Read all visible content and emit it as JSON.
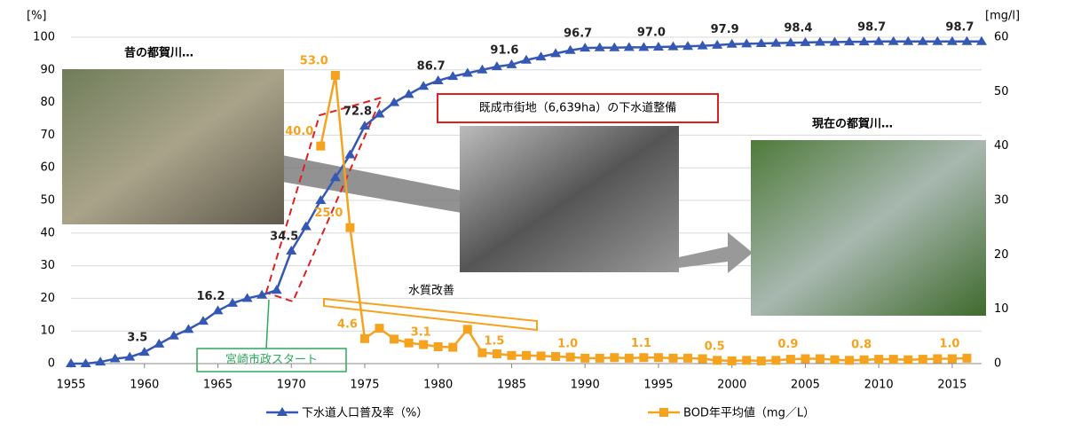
{
  "chart_data": {
    "type": "line",
    "y_unit": "[%]",
    "y2_unit": "[mg/l]",
    "x": [
      1955,
      1956,
      1957,
      1958,
      1959,
      1960,
      1961,
      1962,
      1963,
      1964,
      1965,
      1966,
      1967,
      1968,
      1969,
      1970,
      1971,
      1972,
      1973,
      1974,
      1975,
      1976,
      1977,
      1978,
      1979,
      1980,
      1981,
      1982,
      1983,
      1984,
      1985,
      1986,
      1987,
      1988,
      1989,
      1990,
      1991,
      1992,
      1993,
      1994,
      1995,
      1996,
      1997,
      1998,
      1999,
      2000,
      2001,
      2002,
      2003,
      2004,
      2005,
      2006,
      2007,
      2008,
      2009,
      2010,
      2011,
      2012,
      2013,
      2014,
      2015,
      2016,
      2017
    ],
    "xlim": [
      1955,
      2017
    ],
    "xticks": [
      1955,
      1960,
      1965,
      1970,
      1975,
      1980,
      1985,
      1990,
      1995,
      2000,
      2005,
      2010,
      2015
    ],
    "ylim": [
      0,
      100
    ],
    "yticks": [
      0,
      10,
      20,
      30,
      40,
      50,
      60,
      70,
      80,
      90,
      100
    ],
    "y2lim": [
      0,
      60
    ],
    "y2ticks": [
      0,
      10,
      20,
      30,
      40,
      50,
      60
    ],
    "grid": true,
    "series": [
      {
        "name": "下水道人口普及率（%）",
        "color": "#3558b4",
        "marker": "triangle",
        "values": [
          0,
          0,
          0.5,
          1.5,
          2,
          3.5,
          6,
          8.5,
          10.5,
          13,
          16.2,
          18.5,
          20,
          21,
          22.5,
          34.5,
          42,
          50,
          57,
          64,
          72.8,
          76.5,
          80,
          82.5,
          85,
          86.7,
          88,
          89,
          90,
          91,
          91.6,
          93,
          94,
          95,
          96,
          96.7,
          96.8,
          96.8,
          96.9,
          96.9,
          97.0,
          97.1,
          97.2,
          97.4,
          97.6,
          97.9,
          98,
          98.1,
          98.2,
          98.3,
          98.4,
          98.5,
          98.5,
          98.6,
          98.6,
          98.7,
          98.7,
          98.7,
          98.7,
          98.7,
          98.7,
          98.7,
          98.7
        ],
        "value_labels": [
          null,
          null,
          null,
          null,
          null,
          "3.5",
          null,
          null,
          null,
          null,
          "16.2",
          null,
          null,
          null,
          null,
          "34.5",
          null,
          null,
          null,
          null,
          "72.8",
          null,
          null,
          null,
          null,
          "86.7",
          null,
          null,
          null,
          null,
          "91.6",
          null,
          null,
          null,
          null,
          "96.7",
          null,
          null,
          null,
          null,
          "97.0",
          null,
          null,
          null,
          null,
          "97.9",
          null,
          null,
          null,
          null,
          "98.4",
          null,
          null,
          null,
          null,
          "98.7",
          null,
          null,
          null,
          null,
          null,
          "98.7",
          null
        ]
      },
      {
        "name": "BOD年平均値（mg／L）",
        "color": "#f5a31f",
        "marker": "square",
        "axis": "y2",
        "values": [
          null,
          null,
          null,
          null,
          null,
          null,
          null,
          null,
          null,
          null,
          null,
          null,
          null,
          null,
          null,
          null,
          null,
          40.0,
          53.0,
          25.0,
          4.6,
          6.5,
          4.5,
          3.8,
          3.5,
          3.1,
          3.0,
          6.3,
          2.0,
          1.8,
          1.5,
          1.5,
          1.4,
          1.3,
          1.2,
          1.0,
          1.0,
          1.1,
          1.0,
          1.1,
          1.1,
          1.0,
          1.0,
          0.9,
          0.6,
          0.5,
          0.6,
          0.5,
          0.6,
          0.8,
          0.9,
          0.9,
          0.7,
          0.6,
          0.7,
          0.8,
          0.8,
          0.7,
          0.8,
          0.9,
          0.9,
          1.0,
          null
        ],
        "value_labels": [
          null,
          null,
          null,
          null,
          null,
          null,
          null,
          null,
          null,
          null,
          null,
          null,
          null,
          null,
          null,
          null,
          null,
          "40.0",
          "53.0",
          "25.0",
          "4.6",
          null,
          null,
          null,
          null,
          "3.1",
          null,
          null,
          null,
          null,
          "1.5",
          null,
          null,
          null,
          null,
          "1.0",
          null,
          null,
          null,
          null,
          "1.1",
          null,
          null,
          null,
          null,
          "0.5",
          null,
          null,
          null,
          null,
          "0.9",
          null,
          null,
          null,
          null,
          "0.8",
          null,
          null,
          null,
          null,
          null,
          "1.0",
          null
        ]
      }
    ],
    "annotations": {
      "old": "昔の都賀川…",
      "now": "現在の都賀川…",
      "sewer": "既成市街地（6,639ha）の下水道整備",
      "water": "水質改善",
      "start": "宮崎市政スタート"
    }
  }
}
